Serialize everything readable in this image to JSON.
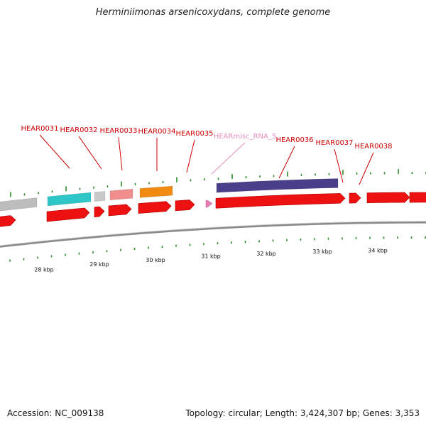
{
  "title": "Herminiimonas arsenicoxydans, complete genome",
  "accession": "Accession: NC_009138",
  "stats": "Topology: circular; Length: 3,424,307 bp; Genes: 3,353",
  "colors": {
    "cds": "#ee1111",
    "label": "#cc0000",
    "rna": "#e57fb3",
    "tick": "#2a8a2a",
    "backbone": "#8a8a8a"
  },
  "gene_labels": [
    {
      "id": "g31",
      "text": "HEAR0031",
      "color": "#cc0000"
    },
    {
      "id": "g32",
      "text": "HEAR0032",
      "color": "#cc0000"
    },
    {
      "id": "g33",
      "text": "HEAR0033",
      "color": "#cc0000"
    },
    {
      "id": "g34",
      "text": "HEAR0034",
      "color": "#cc0000"
    },
    {
      "id": "g35",
      "text": "HEAR0035",
      "color": "#cc0000"
    },
    {
      "id": "rna5",
      "text": "HEARmisc_RNA_5",
      "color": "#e58fc0"
    },
    {
      "id": "g36",
      "text": "HEAR0036",
      "color": "#cc0000"
    },
    {
      "id": "g37",
      "text": "HEAR0037",
      "color": "#cc0000"
    },
    {
      "id": "g38",
      "text": "HEAR0038",
      "color": "#cc0000"
    }
  ],
  "kbp_labels": [
    "28 kbp",
    "29 kbp",
    "30 kbp",
    "31 kbp",
    "32 kbp",
    "33 kbp",
    "34 kbp"
  ],
  "cog_blocks": [
    {
      "id": "c1",
      "color": "#bdbdbd"
    },
    {
      "id": "c2",
      "color": "#2ec6c6"
    },
    {
      "id": "c3",
      "color": "#c9c9c9"
    },
    {
      "id": "c4",
      "color": "#f08d8d"
    },
    {
      "id": "c5",
      "color": "#f08a10"
    },
    {
      "id": "c6",
      "color": "#4a3f8a"
    }
  ]
}
